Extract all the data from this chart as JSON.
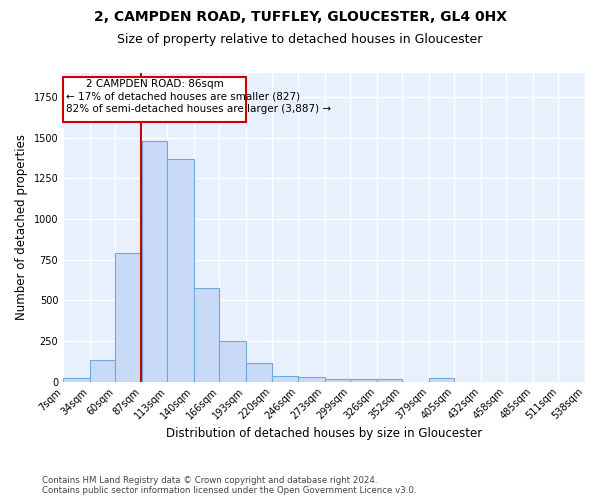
{
  "title": "2, CAMPDEN ROAD, TUFFLEY, GLOUCESTER, GL4 0HX",
  "subtitle": "Size of property relative to detached houses in Gloucester",
  "xlabel": "Distribution of detached houses by size in Gloucester",
  "ylabel": "Number of detached properties",
  "footer_line1": "Contains HM Land Registry data © Crown copyright and database right 2024.",
  "footer_line2": "Contains public sector information licensed under the Open Government Licence v3.0.",
  "bin_labels": [
    "7sqm",
    "34sqm",
    "60sqm",
    "87sqm",
    "113sqm",
    "140sqm",
    "166sqm",
    "193sqm",
    "220sqm",
    "246sqm",
    "273sqm",
    "299sqm",
    "326sqm",
    "352sqm",
    "379sqm",
    "405sqm",
    "432sqm",
    "458sqm",
    "485sqm",
    "511sqm",
    "538sqm"
  ],
  "bar_values": [
    20,
    135,
    790,
    1480,
    1370,
    575,
    248,
    113,
    32,
    28,
    18,
    15,
    18,
    0,
    20,
    0,
    0,
    0,
    0,
    0
  ],
  "bar_color": "#c9daf8",
  "bar_edgecolor": "#6fa8dc",
  "bg_color": "#e8f0fe",
  "grid_color": "white",
  "annotation_box_color": "white",
  "annotation_box_edgecolor": "#cc0000",
  "vline_x": 86,
  "vline_color": "#cc0000",
  "annotation_text_line1": "2 CAMPDEN ROAD: 86sqm",
  "annotation_text_line2": "← 17% of detached houses are smaller (827)",
  "annotation_text_line3": "82% of semi-detached houses are larger (3,887) →",
  "annotation_fontsize": 7.5,
  "ylim": [
    0,
    1900
  ],
  "bin_edges": [
    7,
    34,
    60,
    87,
    113,
    140,
    166,
    193,
    220,
    246,
    273,
    299,
    326,
    352,
    379,
    405,
    432,
    458,
    485,
    511,
    538
  ],
  "title_fontsize": 10,
  "subtitle_fontsize": 9,
  "ylabel_fontsize": 8.5,
  "xlabel_fontsize": 8.5,
  "tick_fontsize": 7
}
